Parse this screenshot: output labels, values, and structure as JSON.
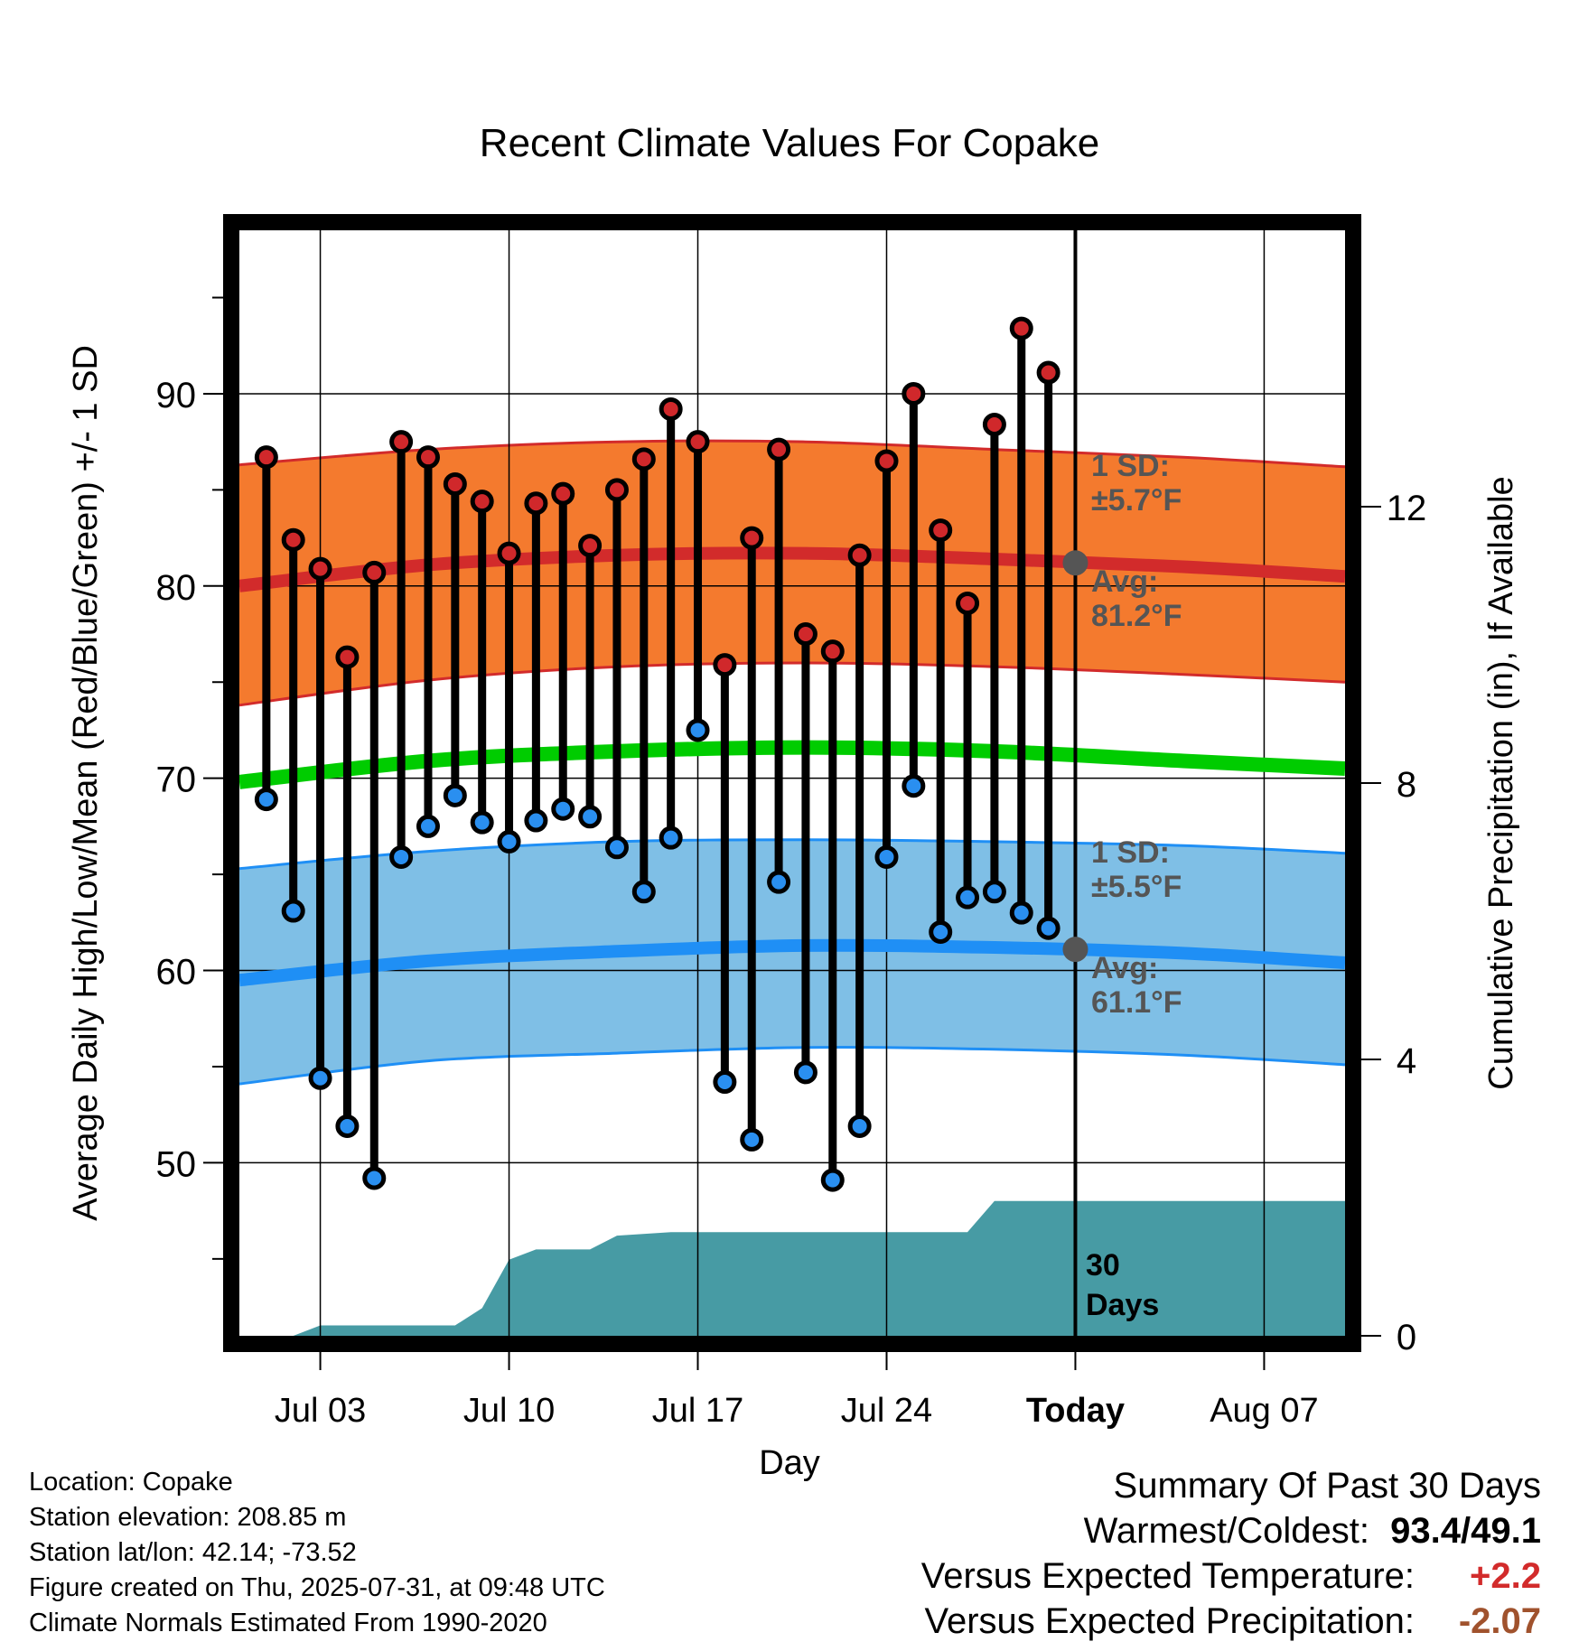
{
  "chart_data": {
    "type": "line",
    "title": "Recent Climate Values For Copake",
    "xlabel": "Day",
    "ylabel_left": "Average Daily High/Low/Mean (Red/Blue/Green) +/- 1 SD",
    "ylabel_right": "Cumulative Precipitation (in), If Available",
    "y_left_range": [
      41.0,
      98.5
    ],
    "y_left_ticks": [
      "50",
      "60",
      "70",
      "80",
      "90"
    ],
    "y_right_range": [
      0,
      16
    ],
    "y_right_ticks": [
      "0",
      "4",
      "8",
      "12"
    ],
    "x_ticks": [
      "Jul 03",
      "Jul 10",
      "Jul 17",
      "Jul 24",
      "Today",
      "Aug 07"
    ],
    "x_range_days": [
      "2025-06-30",
      "2025-08-10"
    ],
    "today": "2025-07-31",
    "daily_high": [
      86.7,
      82.4,
      80.9,
      76.3,
      80.7,
      87.5,
      86.7,
      85.3,
      84.4,
      81.7,
      84.3,
      84.8,
      82.1,
      85.0,
      86.6,
      89.2,
      87.5,
      75.9,
      82.5,
      87.1,
      77.5,
      76.6,
      81.6,
      86.5,
      90.0,
      82.9,
      79.1,
      88.4,
      93.4,
      91.1
    ],
    "daily_low": [
      68.9,
      63.1,
      54.4,
      51.9,
      49.2,
      65.9,
      67.5,
      69.1,
      67.7,
      66.7,
      67.8,
      68.4,
      68.0,
      66.4,
      64.1,
      66.9,
      72.5,
      54.2,
      51.2,
      64.6,
      54.7,
      49.1,
      51.9,
      65.9,
      69.6,
      62.0,
      63.8,
      64.1,
      63.0,
      62.2
    ],
    "high_normal": [
      {
        "date": "2025-06-30",
        "mean": 80.0,
        "lower": 73.8,
        "upper": 86.3
      },
      {
        "date": "2025-07-07",
        "mean": 81.1,
        "lower": 75.1,
        "upper": 87.1
      },
      {
        "date": "2025-07-14",
        "mean": 81.6,
        "lower": 75.8,
        "upper": 87.5
      },
      {
        "date": "2025-07-21",
        "mean": 81.7,
        "lower": 76.0,
        "upper": 87.5
      },
      {
        "date": "2025-07-28",
        "mean": 81.4,
        "lower": 75.8,
        "upper": 87.1
      },
      {
        "date": "2025-08-04",
        "mean": 81.0,
        "lower": 75.4,
        "upper": 86.7
      },
      {
        "date": "2025-08-10",
        "mean": 80.5,
        "lower": 75.0,
        "upper": 86.2
      }
    ],
    "low_normal": [
      {
        "date": "2025-06-30",
        "mean": 59.5,
        "lower": 54.1,
        "upper": 65.3
      },
      {
        "date": "2025-07-07",
        "mean": 60.5,
        "lower": 55.3,
        "upper": 66.2
      },
      {
        "date": "2025-07-14",
        "mean": 61.0,
        "lower": 55.7,
        "upper": 66.7
      },
      {
        "date": "2025-07-21",
        "mean": 61.3,
        "lower": 56.0,
        "upper": 66.8
      },
      {
        "date": "2025-07-28",
        "mean": 61.2,
        "lower": 55.9,
        "upper": 66.7
      },
      {
        "date": "2025-08-04",
        "mean": 60.9,
        "lower": 55.6,
        "upper": 66.5
      },
      {
        "date": "2025-08-10",
        "mean": 60.4,
        "lower": 55.1,
        "upper": 66.1
      }
    ],
    "mean_normal": [
      {
        "date": "2025-06-30",
        "value": 69.8
      },
      {
        "date": "2025-07-07",
        "value": 70.9
      },
      {
        "date": "2025-07-14",
        "value": 71.4
      },
      {
        "date": "2025-07-21",
        "value": 71.6
      },
      {
        "date": "2025-07-28",
        "value": 71.4
      },
      {
        "date": "2025-08-04",
        "value": 70.9
      },
      {
        "date": "2025-08-10",
        "value": 70.5
      }
    ],
    "cumulative_precip": [
      {
        "date": "2025-06-30",
        "value": 0.0
      },
      {
        "date": "2025-07-02",
        "value": 0.0
      },
      {
        "date": "2025-07-03",
        "value": 0.15
      },
      {
        "date": "2025-07-08",
        "value": 0.15
      },
      {
        "date": "2025-07-09",
        "value": 0.4
      },
      {
        "date": "2025-07-10",
        "value": 1.1
      },
      {
        "date": "2025-07-11",
        "value": 1.25
      },
      {
        "date": "2025-07-13",
        "value": 1.25
      },
      {
        "date": "2025-07-14",
        "value": 1.45
      },
      {
        "date": "2025-07-16",
        "value": 1.5
      },
      {
        "date": "2025-07-27",
        "value": 1.5
      },
      {
        "date": "2025-07-28",
        "value": 1.95
      },
      {
        "date": "2025-08-10",
        "value": 1.95
      }
    ],
    "annotations": {
      "high_sd_label": "1 SD:",
      "high_sd_value": "±5.7°F",
      "high_avg_label": "Avg:",
      "high_avg_value": "81.2°F",
      "low_sd_label": "1 SD:",
      "low_sd_value": "±5.5°F",
      "low_avg_label": "Avg:",
      "low_avg_value": "61.1°F",
      "period_number": "30",
      "period_unit": "Days"
    },
    "today_avg_high": 81.2,
    "today_avg_low": 61.1,
    "grid": true,
    "colors": {
      "high_band": "#f47a2e",
      "high_line": "#d22b2b",
      "low_band": "#7fbfe6",
      "low_line": "#1f8ff5",
      "mean_line": "#00cc00",
      "precip_fill": "#479ba4",
      "high_marker": "#d0282b",
      "low_marker": "#2a8ff0",
      "annotation_text": "#555555",
      "warm_value": "#d22b2b",
      "precip_value": "#a0522d"
    }
  },
  "station": {
    "location_line": "Location: Copake",
    "elevation_line": "Station elevation: 208.85 m",
    "latlon_line": "Station lat/lon: 42.14; -73.52",
    "created_line": "Figure created on Thu, 2025-07-31, at 09:48 UTC",
    "normals_line": "Climate Normals Estimated From 1990-2020"
  },
  "summary": {
    "heading": "Summary Of Past 30 Days",
    "warmest_coldest_label": "Warmest/Coldest:",
    "warmest_coldest_value": "93.4/49.1",
    "temp_label": "Versus Expected Temperature:",
    "temp_value": "+2.2",
    "precip_label": "Versus Expected Precipitation:",
    "precip_value": "-2.07"
  }
}
